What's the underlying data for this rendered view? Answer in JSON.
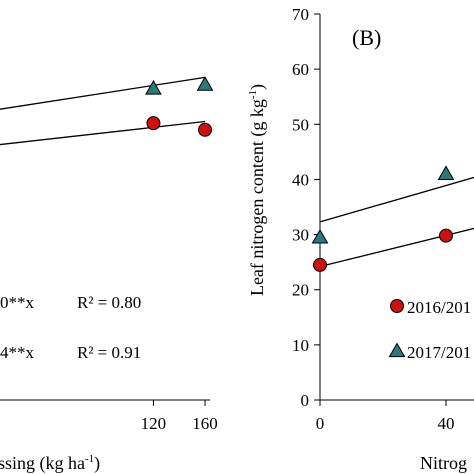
{
  "chart_data": [
    {
      "type": "scatter",
      "panel_label": "",
      "xlabel": "ssing (kg ha",
      "xlabel_sup": "-1",
      "xlabel_close": ")",
      "ylabel": "",
      "xlim": [
        0,
        160
      ],
      "ylim": [
        0,
        70
      ],
      "xticks": [
        {
          "v": 120,
          "label": "120"
        },
        {
          "v": 160,
          "label": "160"
        }
      ],
      "series": [
        {
          "marker": "triangle",
          "color": "#2a7a7c",
          "points": [
            {
              "x": 120,
              "y": 56.5
            },
            {
              "x": 160,
              "y": 57.2
            }
          ],
          "fit_line": {
            "x0": 0,
            "y0": 52.7,
            "x1": 160,
            "y1": 58.5
          },
          "equation": "4**x",
          "r2": "R² = 0.91"
        },
        {
          "marker": "circle",
          "color": "#cc1111",
          "points": [
            {
              "x": 120,
              "y": 50.2
            },
            {
              "x": 160,
              "y": 49.0
            }
          ],
          "fit_line": {
            "x0": 0,
            "y0": 46.3,
            "x1": 160,
            "y1": 50.5
          },
          "equation": "0**x",
          "r2": "R² = 0.80"
        }
      ]
    },
    {
      "type": "scatter",
      "panel_label": "(B)",
      "ylabel": "Leaf  nitrogen content (g kg",
      "ylabel_sup": "-1",
      "ylabel_close": ")",
      "xlabel": "Nitrog",
      "xlim": [
        0,
        80
      ],
      "ylim": [
        0,
        70
      ],
      "yticks": [
        "0",
        "10",
        "20",
        "30",
        "40",
        "50",
        "60",
        "70"
      ],
      "xticks": [
        {
          "v": 0,
          "label": "0"
        },
        {
          "v": 40,
          "label": "40"
        }
      ],
      "series": [
        {
          "name": "2016/201",
          "marker": "circle",
          "color": "#cc1111",
          "points": [
            {
              "x": 0,
              "y": 24.5
            },
            {
              "x": 40,
              "y": 29.8
            }
          ],
          "fit_line": {
            "x0": 0,
            "y0": 24.2,
            "x1": 80,
            "y1": 35.5
          }
        },
        {
          "name": "2017/201",
          "marker": "triangle",
          "color": "#2a7a7c",
          "points": [
            {
              "x": 0,
              "y": 29.5
            },
            {
              "x": 40,
              "y": 41.0
            }
          ],
          "fit_line": {
            "x0": 0,
            "y0": 32.3,
            "x1": 80,
            "y1": 45.5
          }
        }
      ]
    }
  ]
}
